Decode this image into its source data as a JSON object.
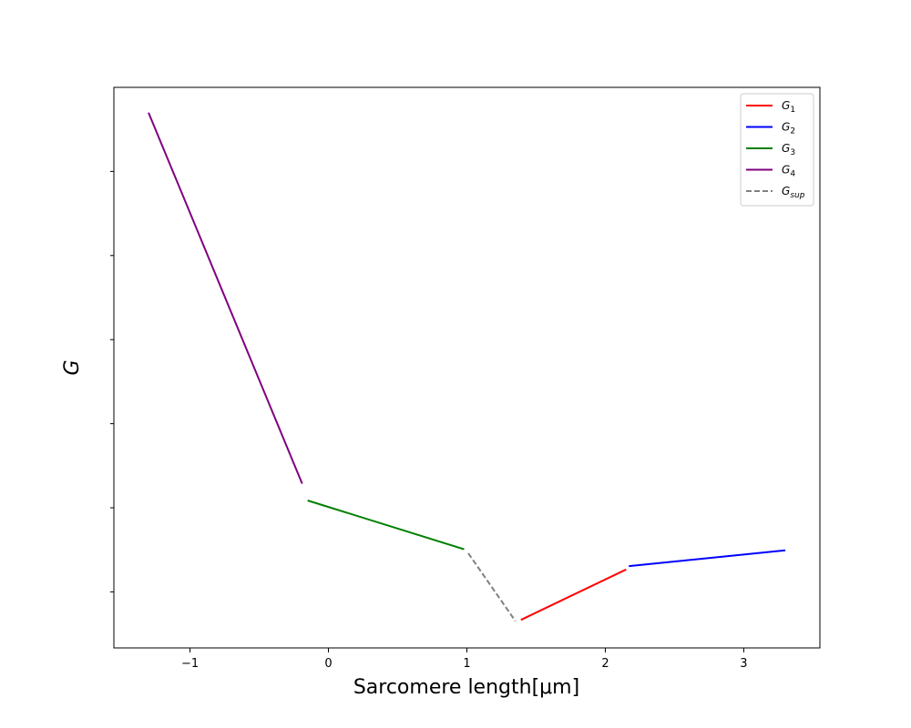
{
  "chart_data": {
    "type": "line",
    "title": "",
    "xlabel": "Sarcomere length[μm]",
    "ylabel": "G",
    "xlim": [
      -1.55,
      3.55
    ],
    "ylim": [
      0,
      1
    ],
    "x_ticks": [
      -1,
      0,
      1,
      2,
      3
    ],
    "x_tick_labels": [
      "−1",
      "0",
      "1",
      "2",
      "3"
    ],
    "y_ticks": [
      0.1,
      0.25,
      0.4,
      0.55,
      0.7,
      0.85
    ],
    "y_tick_labels_shown": false,
    "grid": false,
    "legend_position": "top-right",
    "series": [
      {
        "name": "G",
        "sub": "1",
        "color": "#ff0000",
        "dash": false,
        "x": [
          1.39,
          2.15
        ],
        "y": [
          0.05,
          0.14
        ]
      },
      {
        "name": "G",
        "sub": "2",
        "color": "#0000ff",
        "dash": false,
        "x": [
          2.17,
          3.3
        ],
        "y": [
          0.146,
          0.174
        ]
      },
      {
        "name": "G",
        "sub": "3",
        "color": "#008000",
        "dash": false,
        "x": [
          -0.15,
          0.98
        ],
        "y": [
          0.263,
          0.176
        ]
      },
      {
        "name": "G",
        "sub": "4",
        "color": "#800080",
        "dash": false,
        "x": [
          -1.3,
          -0.19
        ],
        "y": [
          0.955,
          0.293
        ]
      },
      {
        "name": "G",
        "sub": "sup",
        "color": "#808080",
        "dash": true,
        "x": [
          1.01,
          1.35
        ],
        "y": [
          0.169,
          0.048
        ]
      }
    ]
  }
}
